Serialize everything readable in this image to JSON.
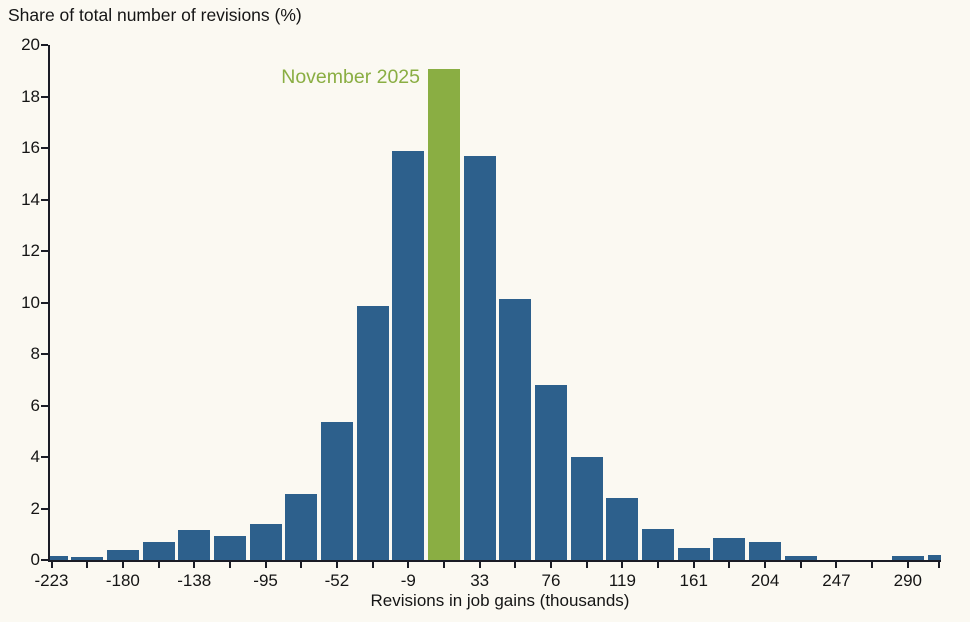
{
  "page": {
    "title": "Share of total number of revisions (%)"
  },
  "chart_data": {
    "type": "bar",
    "title": "Share of total number of revisions (%)",
    "xlabel": "Revisions in job gains (thousands)",
    "ylabel": "Share of total number of revisions (%)",
    "ylim": [
      0,
      20
    ],
    "grid": false,
    "legend_position": "none",
    "y_ticks": [
      0,
      2,
      4,
      6,
      8,
      10,
      12,
      14,
      16,
      18,
      20
    ],
    "x_tick_labels": [
      "-223",
      "-180",
      "-138",
      "-95",
      "-52",
      "-9",
      "33",
      "76",
      "119",
      "161",
      "204",
      "247",
      "290"
    ],
    "bin_centers": [
      -223,
      -202,
      -180,
      -159,
      -138,
      -116,
      -95,
      -74,
      -52,
      -30,
      -9,
      12,
      33,
      54,
      76,
      97,
      119,
      140,
      161,
      182,
      204,
      226,
      247,
      268,
      290,
      311
    ],
    "values": [
      0.15,
      0.1,
      0.4,
      0.7,
      1.15,
      0.95,
      1.4,
      2.55,
      5.35,
      9.85,
      15.9,
      19.05,
      15.7,
      10.15,
      6.8,
      4.0,
      2.4,
      1.2,
      0.45,
      0.85,
      0.7,
      0.15,
      0,
      0,
      0.15,
      0.2
    ],
    "highlight_index": 11,
    "annotation": {
      "text": "November 2025"
    },
    "colors": {
      "bar": "#2d608c",
      "highlight": "#8aae43",
      "background": "#fbf9f2",
      "text": "#151515",
      "axis": "#1a1c26"
    }
  }
}
